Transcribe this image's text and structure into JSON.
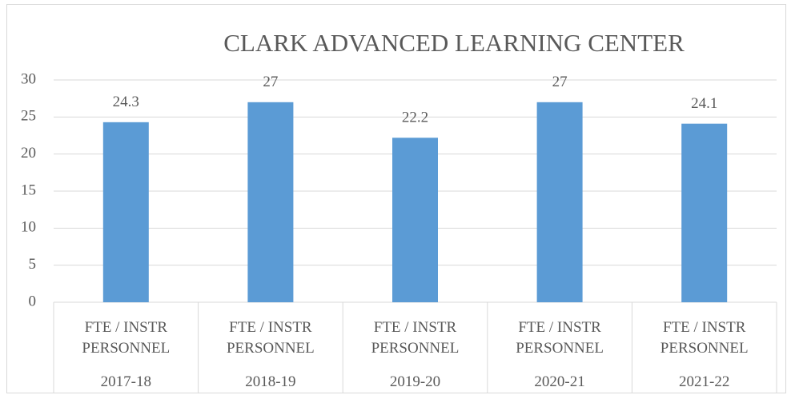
{
  "chart_data": {
    "type": "bar",
    "title": "CLARK ADVANCED LEARNING CENTER",
    "categories": [
      [
        "FTE / INSTR PERSONNEL",
        "2017-18"
      ],
      [
        "FTE / INSTR PERSONNEL",
        "2018-19"
      ],
      [
        "FTE / INSTR PERSONNEL",
        "2019-20"
      ],
      [
        "FTE / INSTR PERSONNEL",
        "2020-21"
      ],
      [
        "FTE / INSTR PERSONNEL",
        "2021-22"
      ]
    ],
    "values": [
      24.3,
      27,
      22.2,
      27,
      24.1
    ],
    "color": "#5b9bd5",
    "ylim": [
      0,
      30
    ],
    "yticks": [
      0,
      5,
      10,
      15,
      20,
      25,
      30
    ],
    "grid": true
  }
}
